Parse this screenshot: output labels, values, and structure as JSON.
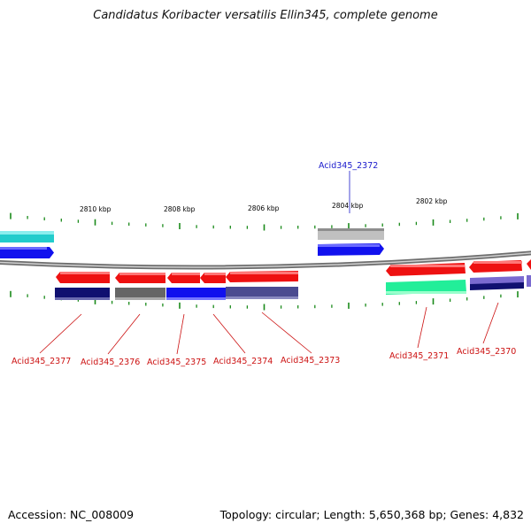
{
  "title": "Candidatus Koribacter versatilis Ellin345, complete genome",
  "footer": {
    "accession": "Accession: NC_008009",
    "summary": "Topology: circular; Length: 5,650,368 bp; Genes: 4,832"
  },
  "scale_labels": [
    "2810 kbp",
    "2808 kbp",
    "2806 kbp",
    "2804 kbp",
    "2802 kbp"
  ],
  "gene_labels": [
    {
      "name": "Acid345_2372",
      "color": "#1a1acc"
    },
    {
      "name": "Acid345_2377",
      "color": "#cc1111"
    },
    {
      "name": "Acid345_2376",
      "color": "#cc1111"
    },
    {
      "name": "Acid345_2375",
      "color": "#cc1111"
    },
    {
      "name": "Acid345_2374",
      "color": "#cc1111"
    },
    {
      "name": "Acid345_2373",
      "color": "#cc1111"
    },
    {
      "name": "Acid345_2371",
      "color": "#cc1111"
    },
    {
      "name": "Acid345_2370",
      "color": "#cc1111"
    }
  ],
  "colors": {
    "backbone": "#8a8a8a",
    "tick": "#1a8a1a",
    "gene_red": "#ee1111",
    "gene_blue": "#1111ee",
    "gene_cyan": "#22cccc",
    "gene_navy": "#101070",
    "gene_gray": "#666666",
    "gene_light_gray": "#c0c0c0",
    "gene_slate": "#4a4a90",
    "gene_mint": "#22ee99",
    "gene_purple": "#7a6ad0"
  }
}
